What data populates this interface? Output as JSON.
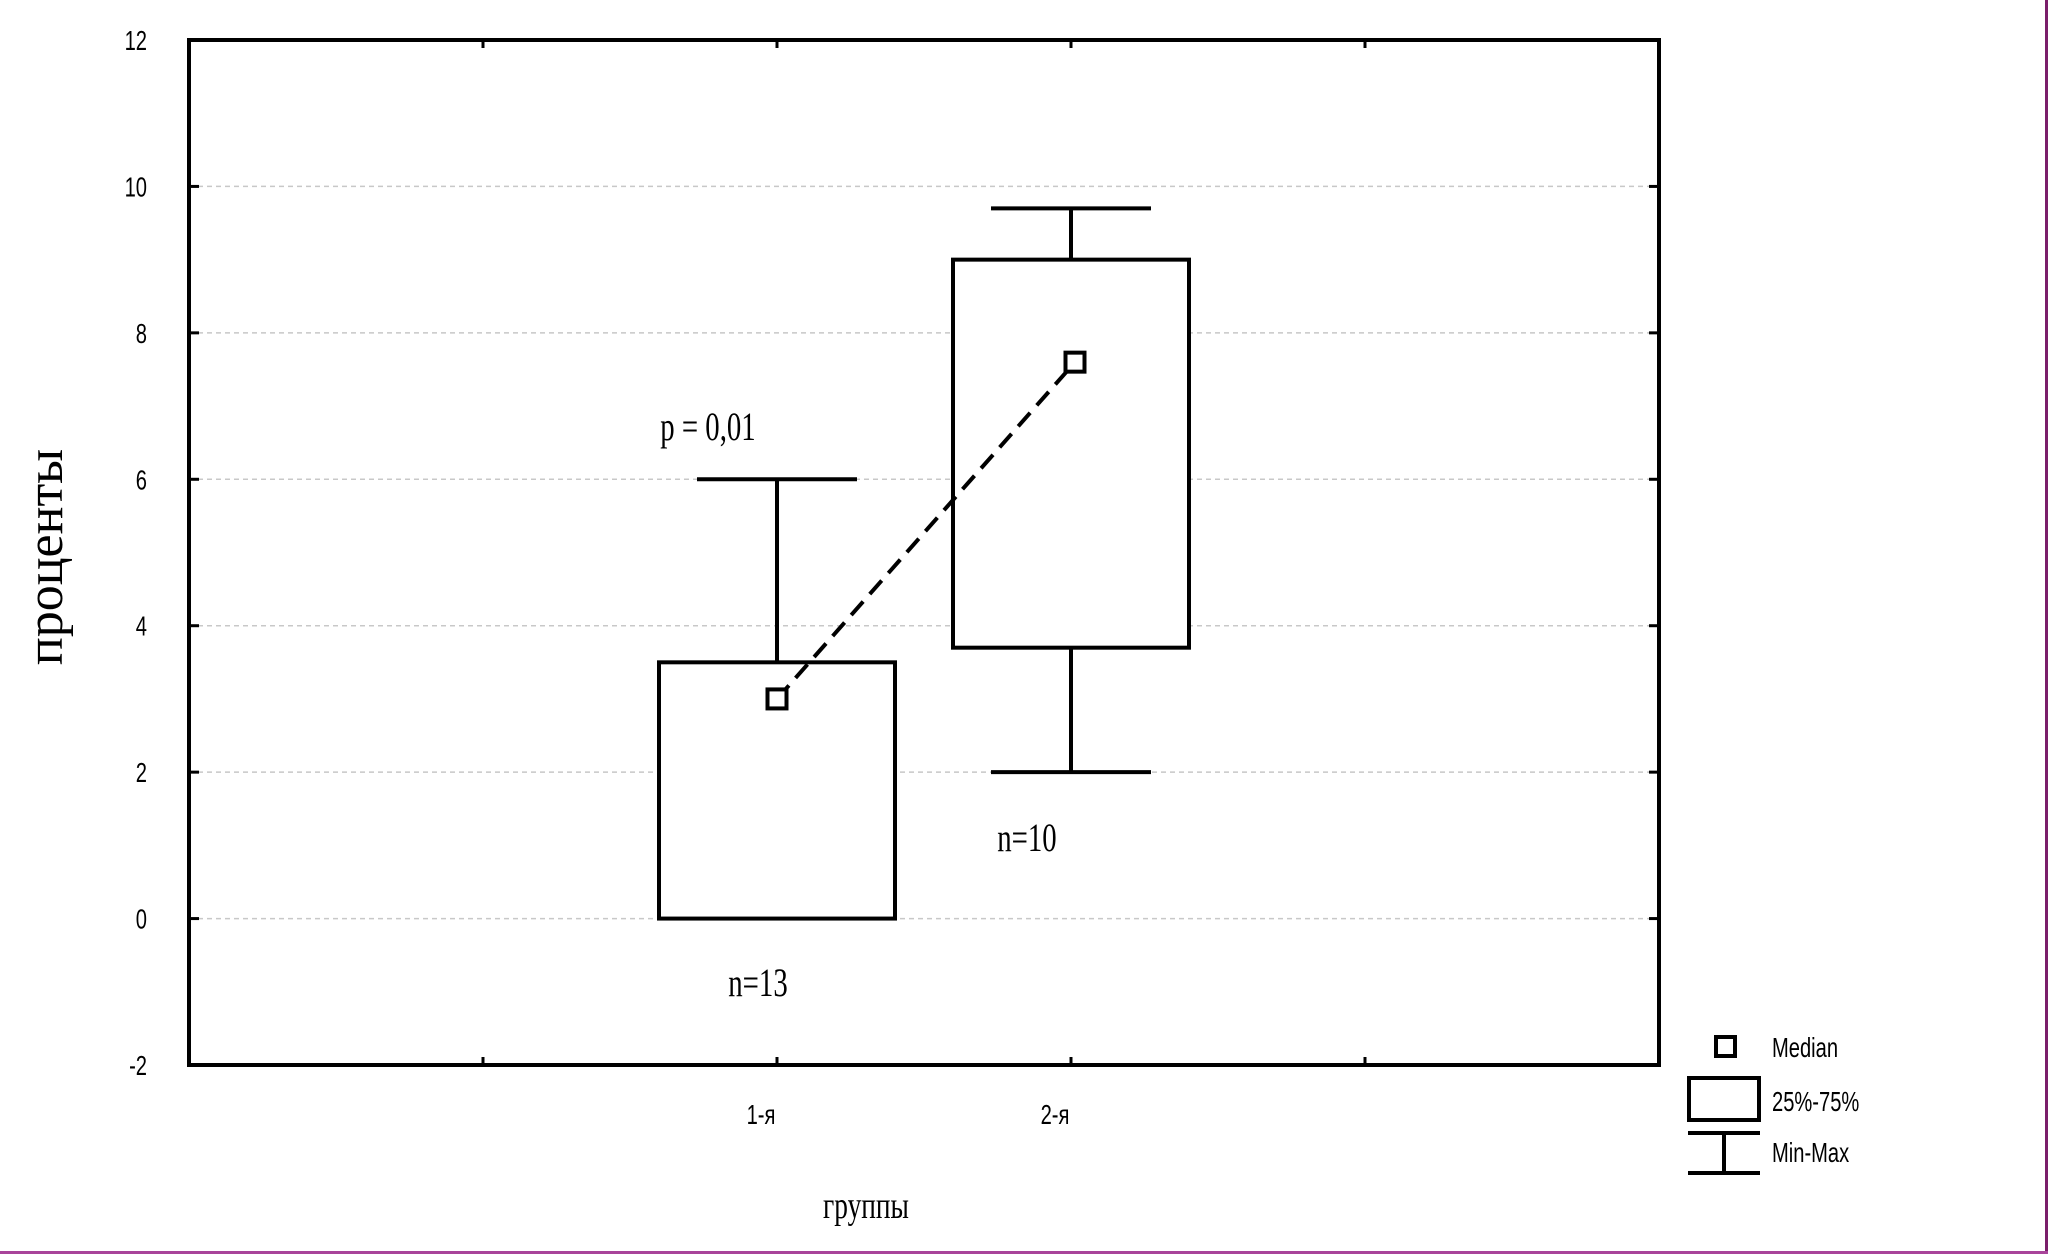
{
  "chart_data": {
    "type": "boxplot",
    "xlabel": "группы",
    "ylabel": "проценты",
    "ylim": [
      -2,
      12
    ],
    "yticks": [
      "12",
      "10",
      "8",
      "6",
      "4",
      "2",
      "0",
      "-2"
    ],
    "ytick_values": [
      12,
      10,
      8,
      6,
      4,
      2,
      0,
      -2
    ],
    "grid": true,
    "grid_style": "dashed-horizontal",
    "categories": [
      "1-я",
      "2-я"
    ],
    "groups": [
      {
        "label": "1-я",
        "min": 0,
        "q1": 0,
        "median": 3.0,
        "q3": 3.5,
        "max": 6.0,
        "n_label": "n=13"
      },
      {
        "label": "2-я",
        "min": 2.0,
        "q1": 3.7,
        "median": 7.6,
        "q3": 9.0,
        "max": 9.7,
        "n_label": "n=10"
      }
    ],
    "annotations": [
      "p = 0,01"
    ],
    "median_connector": "dashed",
    "legend": {
      "placement": "bottom-right",
      "items": [
        "Median",
        "25%-75%",
        "Min-Max"
      ]
    },
    "colors": {
      "stroke": "#000000",
      "grid": "#c8c8c8",
      "background": "#ffffff"
    }
  }
}
